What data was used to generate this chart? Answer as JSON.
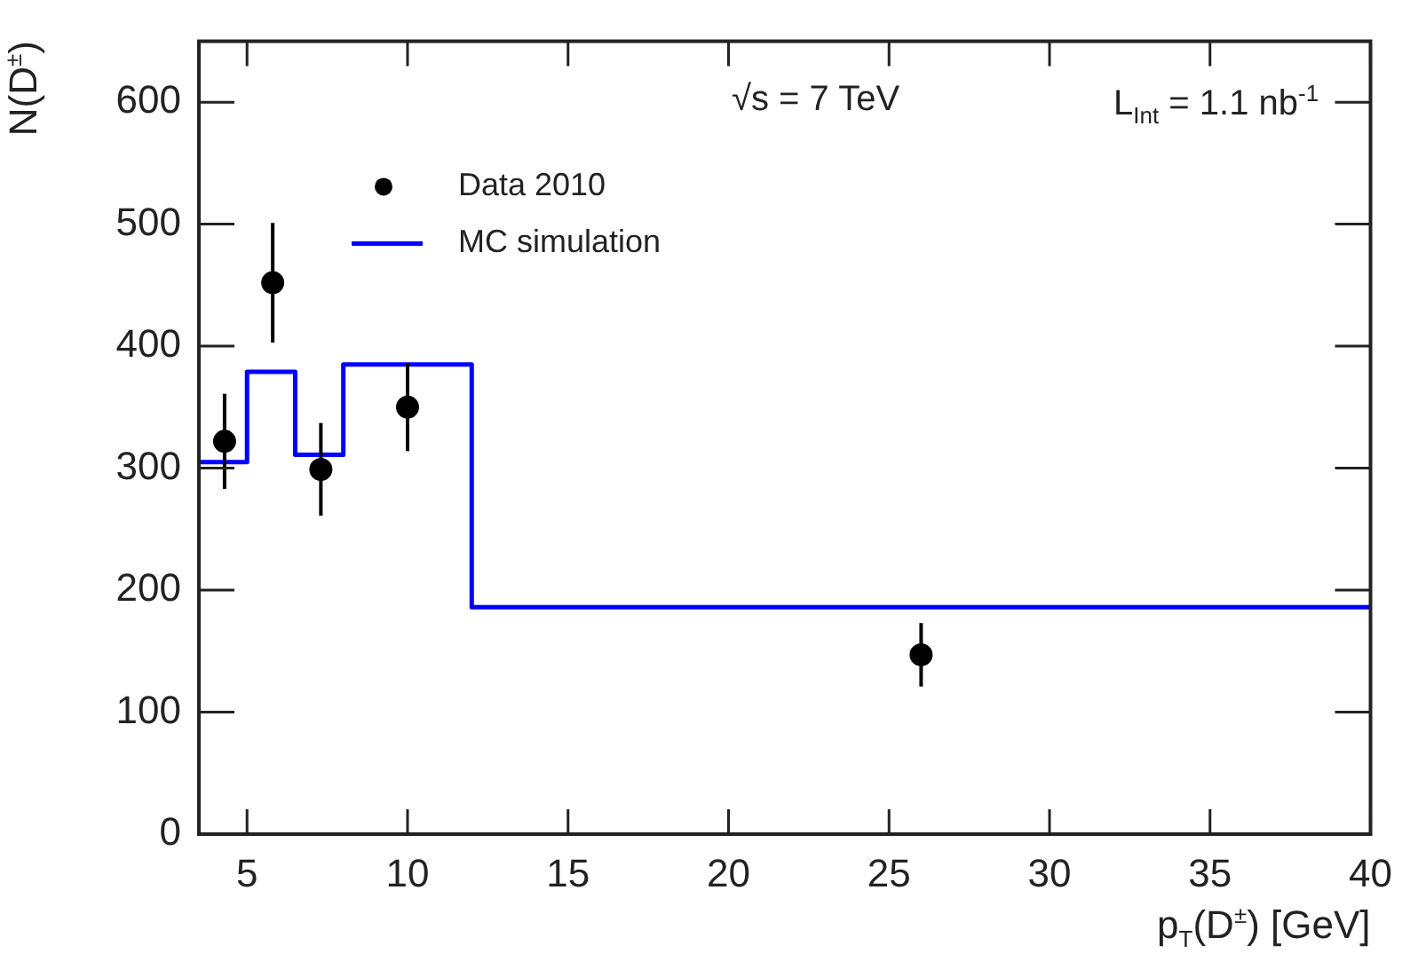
{
  "chart_data": {
    "type": "scatter",
    "xlabel": "p$_{T}$(D$^{±}$) [GeV]",
    "ylabel": "N(D$^{±}$)",
    "annotations": [
      "√s = 7 TeV",
      "L$_{Int}$ = 1.1 nb$^{-1}$"
    ],
    "series": [
      {
        "name": "Data 2010",
        "color": "#000000",
        "marker": "circle",
        "x": [
          4.3,
          5.8,
          7.3,
          10,
          26
        ],
        "values": [
          322,
          452,
          299,
          350,
          147
        ],
        "errors": [
          39,
          49,
          38,
          36,
          26
        ]
      },
      {
        "name": "MC simulation",
        "type": "step",
        "color": "#0000ff",
        "x": [
          3.5,
          5,
          6.5,
          8,
          12,
          40
        ],
        "values": [
          305,
          379,
          311,
          385,
          186,
          186
        ]
      }
    ],
    "xlim": [
      3.5,
      40
    ],
    "xticks": [
      5,
      10,
      15,
      20,
      25,
      30,
      35,
      40
    ],
    "ylim": [
      0,
      650
    ],
    "yticks": [
      0,
      100,
      200,
      300,
      400,
      500,
      600
    ],
    "grid": false,
    "legend": "top left"
  }
}
